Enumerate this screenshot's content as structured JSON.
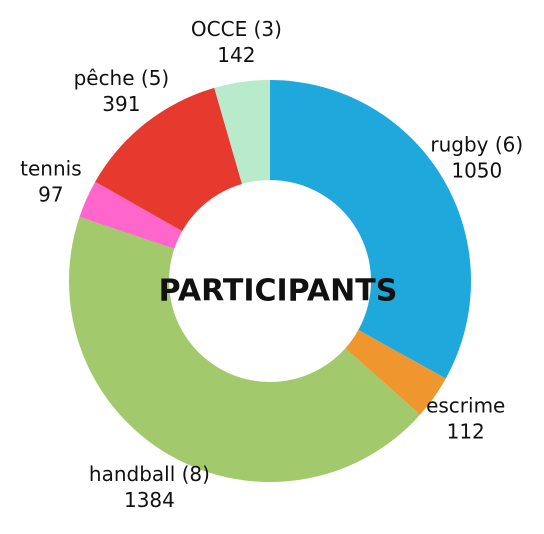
{
  "chart_data": {
    "type": "donut",
    "title": "PARTICIPANTS",
    "categories": [
      "rugby (6)",
      "escrime",
      "handball (8)",
      "tennis",
      "pêche (5)",
      "OCCE (3)"
    ],
    "values": [
      1050,
      112,
      1384,
      97,
      391,
      142
    ],
    "colors": [
      "#1fa8dc",
      "#f0962f",
      "#a2c96b",
      "#ff66cc",
      "#e63a2e",
      "#b8ebcc"
    ]
  }
}
